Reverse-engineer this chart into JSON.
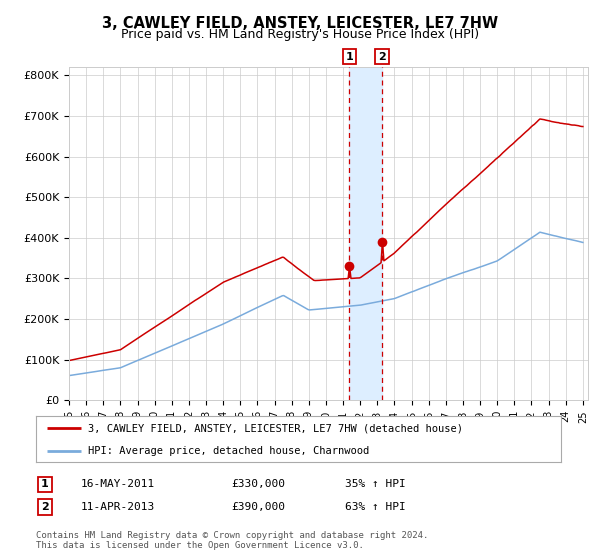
{
  "title1": "3, CAWLEY FIELD, ANSTEY, LEICESTER, LE7 7HW",
  "title2": "Price paid vs. HM Land Registry's House Price Index (HPI)",
  "title1_fontsize": 10.5,
  "title2_fontsize": 9,
  "ylabel_ticks": [
    "£0",
    "£100K",
    "£200K",
    "£300K",
    "£400K",
    "£500K",
    "£600K",
    "£700K",
    "£800K"
  ],
  "ylim": [
    0,
    820000
  ],
  "sale1_date_num": 2011.37,
  "sale1_price": 330000,
  "sale2_date_num": 2013.27,
  "sale2_price": 390000,
  "sale1_label": "1",
  "sale2_label": "2",
  "legend_line1": "3, CAWLEY FIELD, ANSTEY, LEICESTER, LE7 7HW (detached house)",
  "legend_line2": "HPI: Average price, detached house, Charnwood",
  "table_row1": [
    "1",
    "16-MAY-2011",
    "£330,000",
    "35% ↑ HPI"
  ],
  "table_row2": [
    "2",
    "11-APR-2013",
    "£390,000",
    "63% ↑ HPI"
  ],
  "footer": "Contains HM Land Registry data © Crown copyright and database right 2024.\nThis data is licensed under the Open Government Licence v3.0.",
  "hpi_color": "#7aabdc",
  "price_color": "#cc0000",
  "shade_color": "#ddeeff",
  "grid_color": "#cccccc",
  "bg_color": "#ffffff",
  "xstart": 1995,
  "xend": 2025
}
